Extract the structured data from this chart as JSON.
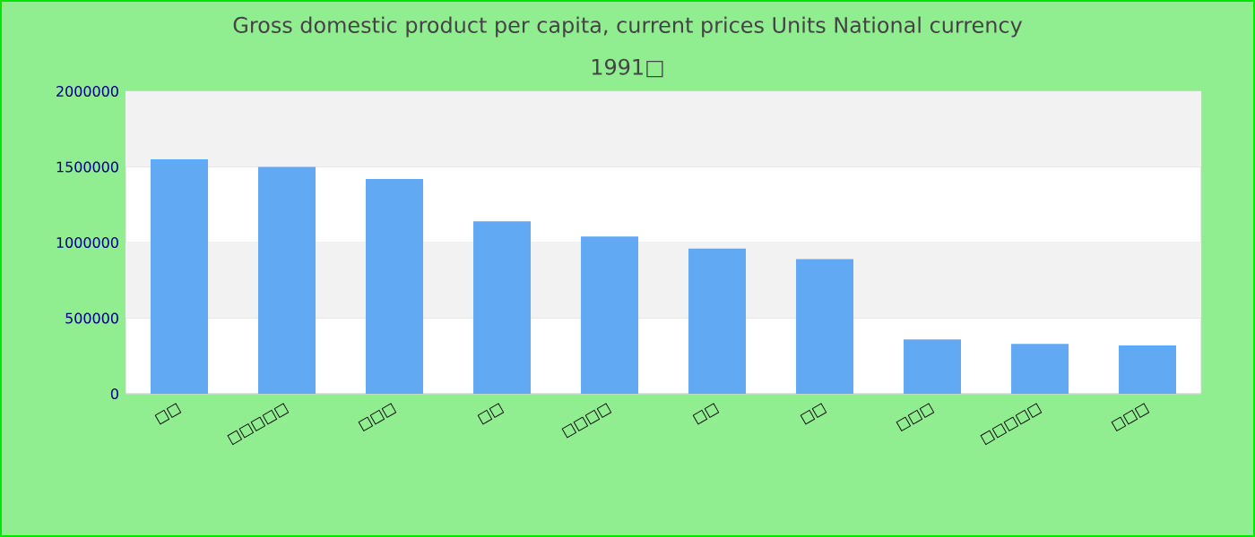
{
  "chart_data": {
    "type": "bar",
    "title": "Gross domestic product per capita, current prices Units National currency",
    "subtitle": "1991□",
    "categories": [
      "□□",
      "□□□□□",
      "□□□",
      "□□",
      "□□□□",
      "□□",
      "□□",
      "□□□",
      "□□□□□",
      "□□□"
    ],
    "values": [
      1550000,
      1500000,
      1420000,
      1140000,
      1040000,
      960000,
      890000,
      360000,
      330000,
      320000
    ],
    "color": "#62a9f4",
    "ylim": [
      0,
      2000000
    ],
    "yticks": [
      0,
      500000,
      1000000,
      1500000,
      2000000
    ],
    "grid": "y"
  }
}
